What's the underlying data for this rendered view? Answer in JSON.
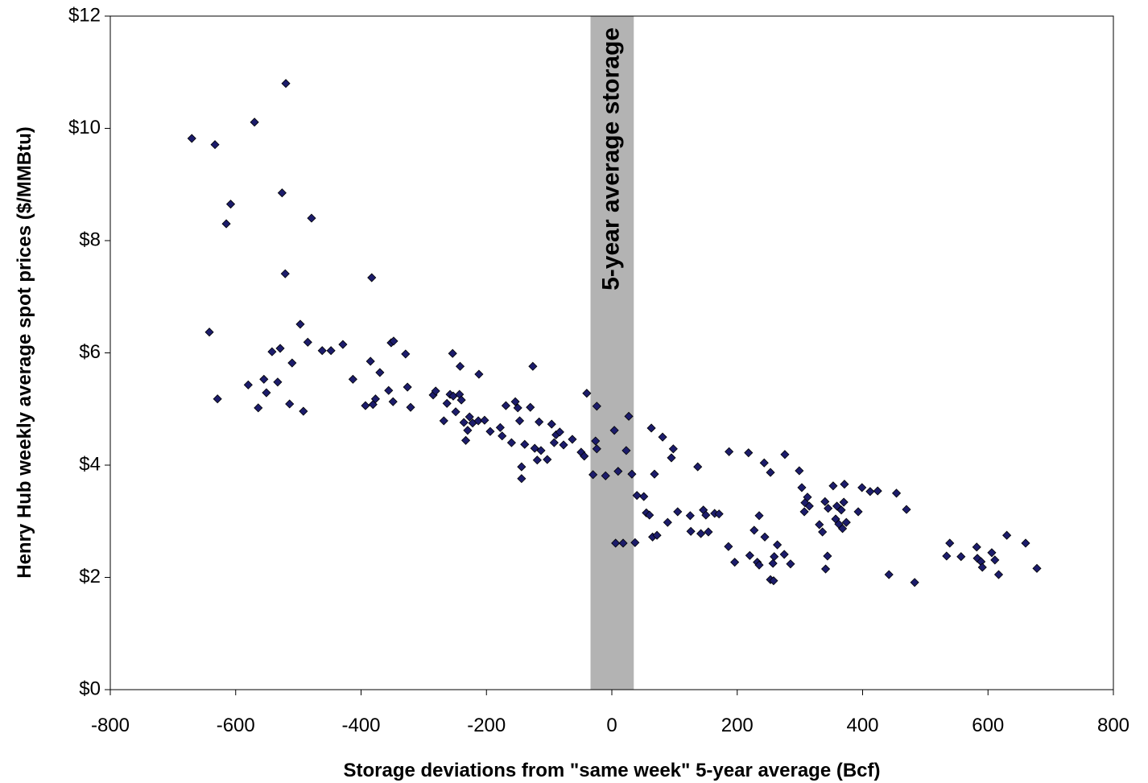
{
  "chart_data": {
    "type": "scatter",
    "xlabel": "Storage deviations from \"same week\" 5-year average (Bcf)",
    "ylabel": "Henry Hub weekly average spot prices ($/MMBtu)",
    "xlim": [
      -800,
      800
    ],
    "xticks": [
      -800,
      -600,
      -400,
      -200,
      0,
      200,
      400,
      600,
      800
    ],
    "ylim": [
      0,
      12
    ],
    "yticks": [
      {
        "value": 0,
        "label": "$0"
      },
      {
        "value": 2,
        "label": "$2"
      },
      {
        "value": 4,
        "label": "$4"
      },
      {
        "value": 6,
        "label": "$6"
      },
      {
        "value": 8,
        "label": "$8"
      },
      {
        "value": 10,
        "label": "$10"
      },
      {
        "value": 12,
        "label": "$12"
      }
    ],
    "band": {
      "label": "5-year average storage",
      "xrange": [
        -34,
        35
      ],
      "color": "#b3b3b3"
    },
    "color": "#1c1c6b",
    "x": [
      -670,
      -633,
      -570,
      -520,
      -608,
      -615,
      -526,
      -479,
      -521,
      -383,
      -642,
      -497,
      -629,
      -580,
      -564,
      -555,
      -551,
      -542,
      -533,
      -529,
      -514,
      -510,
      -492,
      -485,
      -462,
      -448,
      -429,
      -413,
      -393,
      -385,
      -381,
      -377,
      -370,
      -356,
      -352,
      -348,
      -349,
      -329,
      -326,
      -321,
      -285,
      -281,
      -268,
      -263,
      -258,
      -254,
      -253,
      -249,
      -243,
      -242,
      -240,
      -236,
      -233,
      -230,
      -227,
      -222,
      -213,
      -212,
      -203,
      -194,
      -178,
      -175,
      -169,
      -160,
      -154,
      -150,
      -147,
      -144,
      -144,
      -139,
      -130,
      -126,
      -123,
      -119,
      -116,
      -113,
      -103,
      -96,
      -92,
      -89,
      -83,
      -77,
      -63,
      -49,
      -44,
      -40,
      -30,
      -26,
      -24,
      -24,
      -10,
      4,
      6,
      10,
      18,
      23,
      27,
      32,
      37,
      40,
      51,
      55,
      60,
      63,
      65,
      68,
      72,
      81,
      89,
      95,
      98,
      105,
      125,
      126,
      137,
      142,
      146,
      150,
      154,
      164,
      171,
      186,
      187,
      196,
      220,
      218,
      227,
      232,
      235,
      235,
      243,
      244,
      253,
      253,
      257,
      258,
      259,
      264,
      275,
      276,
      285,
      299,
      303,
      307,
      308,
      312,
      315,
      331,
      336,
      340,
      341,
      344,
      345,
      353,
      357,
      359,
      362,
      366,
      368,
      370,
      371,
      374,
      393,
      399,
      412,
      424,
      442,
      454,
      470,
      483,
      534,
      539,
      557,
      582,
      583,
      589,
      591,
      606,
      611,
      617,
      630,
      660,
      678
    ],
    "values": [
      9.82,
      9.71,
      10.11,
      10.8,
      8.65,
      8.3,
      8.85,
      8.4,
      7.41,
      7.34,
      6.37,
      6.51,
      5.18,
      5.43,
      5.02,
      5.53,
      5.29,
      6.02,
      5.48,
      6.08,
      5.09,
      5.82,
      4.96,
      6.19,
      6.04,
      6.04,
      6.15,
      5.53,
      5.06,
      5.85,
      5.08,
      5.18,
      5.65,
      5.33,
      6.18,
      6.21,
      5.13,
      5.98,
      5.39,
      5.03,
      5.25,
      5.32,
      4.79,
      5.1,
      5.26,
      5.99,
      5.23,
      4.95,
      5.26,
      5.76,
      5.16,
      4.76,
      4.44,
      4.62,
      4.86,
      4.75,
      4.79,
      5.62,
      4.8,
      4.6,
      4.67,
      4.52,
      5.06,
      4.4,
      5.13,
      5.02,
      4.79,
      3.97,
      3.76,
      4.37,
      5.03,
      5.76,
      4.3,
      4.09,
      4.77,
      4.26,
      4.1,
      4.73,
      4.4,
      4.54,
      4.59,
      4.36,
      4.46,
      4.23,
      4.16,
      5.28,
      3.83,
      4.43,
      5.05,
      4.29,
      3.81,
      4.62,
      2.61,
      3.89,
      2.61,
      4.26,
      4.87,
      3.84,
      2.62,
      3.46,
      3.44,
      3.15,
      3.11,
      4.66,
      2.72,
      3.84,
      2.75,
      4.5,
      2.98,
      4.13,
      4.29,
      3.17,
      3.1,
      2.82,
      3.97,
      2.78,
      3.2,
      3.11,
      2.81,
      3.14,
      3.13,
      2.55,
      4.24,
      2.27,
      2.39,
      4.22,
      2.84,
      2.27,
      2.22,
      3.1,
      4.04,
      2.72,
      3.87,
      1.96,
      2.25,
      1.94,
      2.37,
      2.58,
      2.41,
      4.19,
      2.24,
      3.9,
      3.6,
      3.17,
      3.33,
      3.43,
      3.27,
      2.94,
      2.81,
      3.35,
      2.15,
      2.38,
      3.23,
      3.63,
      3.04,
      3.27,
      2.95,
      3.2,
      2.87,
      3.34,
      3.66,
      2.98,
      3.17,
      3.6,
      3.53,
      3.54,
      2.05,
      3.5,
      3.21,
      1.91,
      2.38,
      2.61,
      2.37,
      2.54,
      2.34,
      2.28,
      2.18,
      2.44,
      2.31,
      2.05,
      2.75,
      2.61,
      2.16
    ]
  }
}
